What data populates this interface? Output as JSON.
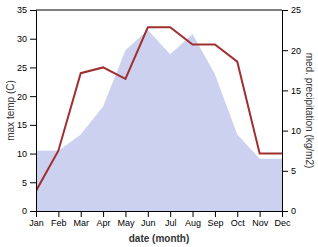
{
  "chart_data": {
    "type": "line",
    "xlabel": "date (month)",
    "ylabel": "max temp (C)",
    "y2label": "med. precipitation (kg/m2)",
    "categories": [
      "Jan",
      "Feb",
      "Mar",
      "Apr",
      "May",
      "Jun",
      "Jul",
      "Aug",
      "Sep",
      "Oct",
      "Nov",
      "Dec"
    ],
    "series": [
      {
        "type": "area",
        "color": "#b0b8e8",
        "axis": "y2",
        "values": [
          7.5,
          7.5,
          9.5,
          13.0,
          20.0,
          22.5,
          19.5,
          22.0,
          17.0,
          9.5,
          6.5,
          6.5
        ]
      },
      {
        "type": "line",
        "color": "#a03030",
        "values": [
          3.5,
          10.5,
          24.0,
          25.0,
          23.0,
          32.0,
          32.0,
          29.0,
          29.0,
          26.0,
          10.0,
          10.0
        ]
      }
    ],
    "ylim": [
      0,
      35
    ],
    "yticks": [
      0,
      5,
      10,
      15,
      20,
      25,
      30,
      35
    ],
    "y2lim": [
      0,
      25
    ],
    "y2ticks": [
      0,
      5,
      10,
      15,
      20,
      25
    ]
  }
}
